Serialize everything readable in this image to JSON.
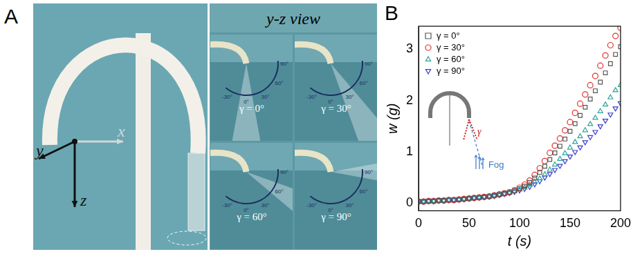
{
  "panel_a": {
    "label": "A",
    "axes": [
      "x",
      "y",
      "z"
    ],
    "view_title": "y-z view",
    "protractor_ticks": [
      {
        "value": -30,
        "label": "-30°"
      },
      {
        "value": 0,
        "label": "0°"
      },
      {
        "value": 30,
        "label": "30°"
      },
      {
        "value": 60,
        "label": "60°"
      },
      {
        "value": 90,
        "label": "90°"
      }
    ],
    "views": [
      {
        "label": "γ = 0°",
        "angle": 0
      },
      {
        "label": "γ = 30°",
        "angle": 30
      },
      {
        "label": "γ = 60°",
        "angle": 60
      },
      {
        "label": "γ = 90°",
        "angle": 90
      }
    ]
  },
  "chart_data": {
    "type": "scatter",
    "title": "B",
    "x_label": "t (s)",
    "y_label": "w (g)",
    "xlim": [
      0,
      200
    ],
    "xticks": [
      0,
      50,
      100,
      150,
      200
    ],
    "ylim": [
      -0.15,
      3.45
    ],
    "yticks": [
      0,
      1,
      2,
      3
    ],
    "grid": false,
    "legend": "upper left",
    "annotations": [
      "γ",
      "Fog"
    ],
    "x": [
      0,
      5,
      10,
      15,
      20,
      25,
      30,
      35,
      40,
      45,
      50,
      55,
      60,
      65,
      70,
      75,
      80,
      85,
      90,
      95,
      100,
      105,
      110,
      115,
      120,
      125,
      130,
      135,
      140,
      145,
      150,
      155,
      160,
      165,
      170,
      175,
      180,
      185,
      190,
      195,
      200
    ],
    "series": [
      {
        "name": "γ = 0°",
        "color": "#555555",
        "marker": "square",
        "values": [
          0.03,
          0.03,
          0.04,
          0.04,
          0.05,
          0.05,
          0.06,
          0.06,
          0.07,
          0.08,
          0.09,
          0.1,
          0.11,
          0.12,
          0.13,
          0.15,
          0.17,
          0.19,
          0.21,
          0.24,
          0.28,
          0.33,
          0.4,
          0.49,
          0.6,
          0.72,
          0.85,
          0.98,
          1.11,
          1.25,
          1.4,
          1.55,
          1.71,
          1.87,
          2.03,
          2.19,
          2.36,
          2.54,
          2.72,
          2.9,
          3.05
        ]
      },
      {
        "name": "γ = 30°",
        "color": "#e0302a",
        "marker": "circle",
        "values": [
          0.03,
          0.03,
          0.04,
          0.04,
          0.05,
          0.05,
          0.06,
          0.06,
          0.07,
          0.08,
          0.09,
          0.1,
          0.11,
          0.12,
          0.13,
          0.15,
          0.17,
          0.19,
          0.21,
          0.25,
          0.3,
          0.36,
          0.44,
          0.55,
          0.68,
          0.82,
          0.98,
          1.12,
          1.26,
          1.42,
          1.58,
          1.76,
          1.94,
          2.12,
          2.3,
          2.48,
          2.68,
          2.88,
          3.08,
          3.26,
          3.42
        ]
      },
      {
        "name": "γ = 60°",
        "color": "#2aa59a",
        "marker": "triangle-up",
        "values": [
          0.03,
          0.03,
          0.04,
          0.04,
          0.05,
          0.05,
          0.06,
          0.06,
          0.07,
          0.08,
          0.09,
          0.1,
          0.11,
          0.12,
          0.13,
          0.15,
          0.16,
          0.18,
          0.2,
          0.23,
          0.26,
          0.3,
          0.35,
          0.41,
          0.48,
          0.56,
          0.65,
          0.75,
          0.86,
          0.97,
          1.08,
          1.19,
          1.3,
          1.42,
          1.54,
          1.66,
          1.79,
          1.92,
          2.06,
          2.2,
          2.3
        ]
      },
      {
        "name": "γ = 90°",
        "color": "#3b3bd0",
        "marker": "triangle-down",
        "values": [
          0.03,
          0.03,
          0.04,
          0.04,
          0.05,
          0.05,
          0.06,
          0.06,
          0.07,
          0.08,
          0.09,
          0.1,
          0.11,
          0.12,
          0.13,
          0.14,
          0.16,
          0.18,
          0.2,
          0.22,
          0.25,
          0.28,
          0.32,
          0.37,
          0.43,
          0.5,
          0.57,
          0.65,
          0.73,
          0.82,
          0.91,
          1.0,
          1.09,
          1.19,
          1.29,
          1.39,
          1.5,
          1.61,
          1.73,
          1.85,
          1.95
        ]
      }
    ]
  }
}
